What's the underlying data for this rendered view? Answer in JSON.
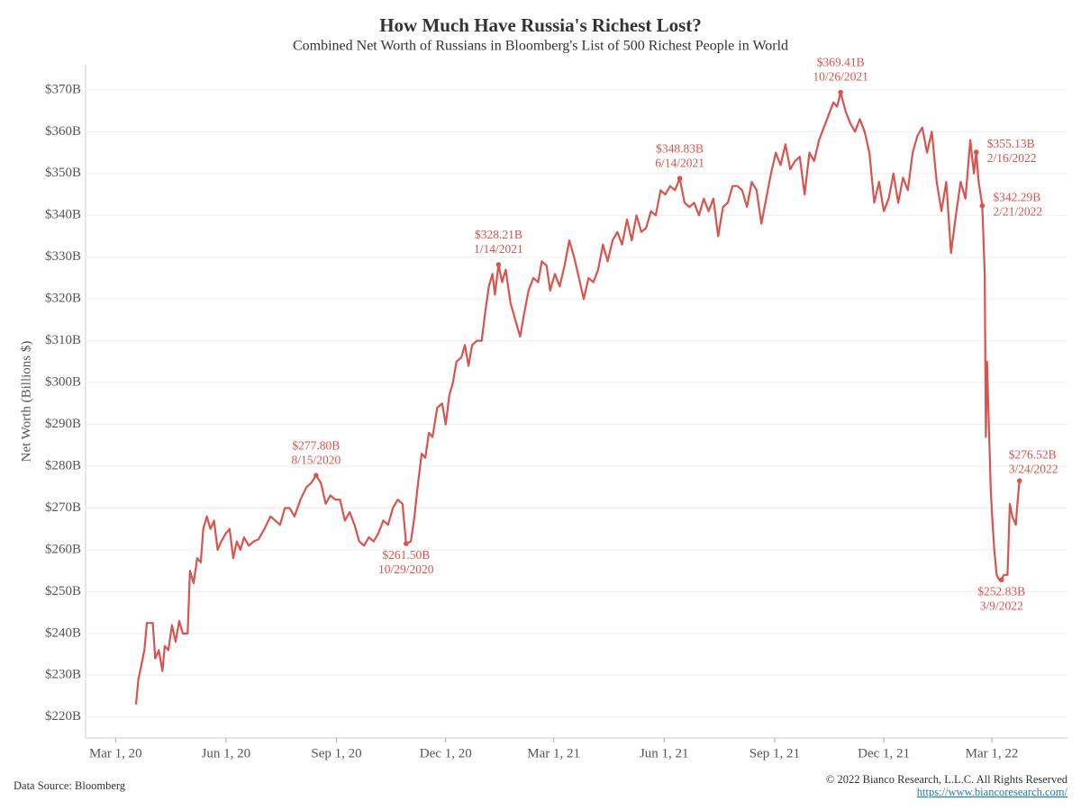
{
  "chart_data": {
    "type": "line",
    "title": "How Much Have Russia's Richest Lost?",
    "subtitle": "Combined Net Worth of Russians in Bloomberg's List of 500 Richest People in World",
    "y_label": "Net Worth (Billions $)",
    "source": "Data Source: Bloomberg",
    "copyright": "© 2022 Bianco Research, L.L.C. All Rights Reserved",
    "url": "https://www.biancoresearch.com/",
    "color": "#d9534f",
    "grid": true,
    "xlim": [
      "2020-02-05",
      "2022-05-03"
    ],
    "ylim": [
      215,
      376
    ],
    "xticks": [
      {
        "value": "2020-03-01",
        "label": "Mar 1, 20"
      },
      {
        "value": "2020-06-01",
        "label": "Jun 1, 20"
      },
      {
        "value": "2020-09-01",
        "label": "Sep 1, 20"
      },
      {
        "value": "2020-12-01",
        "label": "Dec 1, 20"
      },
      {
        "value": "2021-03-01",
        "label": "Mar 1, 21"
      },
      {
        "value": "2021-06-01",
        "label": "Jun 1, 21"
      },
      {
        "value": "2021-09-01",
        "label": "Sep 1, 21"
      },
      {
        "value": "2021-12-01",
        "label": "Dec 1, 21"
      },
      {
        "value": "2022-03-01",
        "label": "Mar 1, 22"
      }
    ],
    "yticks": [
      {
        "value": 220,
        "label": "$220B"
      },
      {
        "value": 230,
        "label": "$230B"
      },
      {
        "value": 240,
        "label": "$240B"
      },
      {
        "value": 250,
        "label": "$250B"
      },
      {
        "value": 260,
        "label": "$260B"
      },
      {
        "value": 270,
        "label": "$270B"
      },
      {
        "value": 280,
        "label": "$280B"
      },
      {
        "value": 290,
        "label": "$290B"
      },
      {
        "value": 300,
        "label": "$300B"
      },
      {
        "value": 310,
        "label": "$310B"
      },
      {
        "value": 320,
        "label": "$320B"
      },
      {
        "value": 330,
        "label": "$330B"
      },
      {
        "value": 340,
        "label": "$340B"
      },
      {
        "value": 350,
        "label": "$350B"
      },
      {
        "value": 360,
        "label": "$360B"
      },
      {
        "value": 370,
        "label": "$370B"
      }
    ],
    "x": [
      "2020-03-18",
      "2020-03-20",
      "2020-03-25",
      "2020-03-27",
      "2020-04-01",
      "2020-04-03",
      "2020-04-06",
      "2020-04-09",
      "2020-04-11",
      "2020-04-14",
      "2020-04-17",
      "2020-04-20",
      "2020-04-23",
      "2020-04-26",
      "2020-04-30",
      "2020-05-02",
      "2020-05-05",
      "2020-05-08",
      "2020-05-11",
      "2020-05-13",
      "2020-05-16",
      "2020-05-19",
      "2020-05-22",
      "2020-05-25",
      "2020-05-28",
      "2020-06-01",
      "2020-06-04",
      "2020-06-07",
      "2020-06-10",
      "2020-06-13",
      "2020-06-16",
      "2020-06-20",
      "2020-06-24",
      "2020-06-28",
      "2020-07-03",
      "2020-07-08",
      "2020-07-12",
      "2020-07-16",
      "2020-07-20",
      "2020-07-24",
      "2020-07-28",
      "2020-08-02",
      "2020-08-07",
      "2020-08-11",
      "2020-08-15",
      "2020-08-19",
      "2020-08-23",
      "2020-08-27",
      "2020-08-31",
      "2020-09-04",
      "2020-09-08",
      "2020-09-12",
      "2020-09-16",
      "2020-09-20",
      "2020-09-24",
      "2020-09-28",
      "2020-10-02",
      "2020-10-06",
      "2020-10-10",
      "2020-10-14",
      "2020-10-18",
      "2020-10-22",
      "2020-10-26",
      "2020-10-29",
      "2020-11-02",
      "2020-11-05",
      "2020-11-08",
      "2020-11-11",
      "2020-11-14",
      "2020-11-17",
      "2020-11-20",
      "2020-11-24",
      "2020-11-28",
      "2020-12-01",
      "2020-12-04",
      "2020-12-07",
      "2020-12-10",
      "2020-12-14",
      "2020-12-17",
      "2020-12-20",
      "2020-12-23",
      "2020-12-27",
      "2020-12-31",
      "2021-01-03",
      "2021-01-06",
      "2021-01-09",
      "2021-01-11",
      "2021-01-14",
      "2021-01-17",
      "2021-01-20",
      "2021-01-24",
      "2021-01-28",
      "2021-02-01",
      "2021-02-04",
      "2021-02-08",
      "2021-02-12",
      "2021-02-16",
      "2021-02-19",
      "2021-02-23",
      "2021-02-26",
      "2021-03-02",
      "2021-03-06",
      "2021-03-10",
      "2021-03-14",
      "2021-03-18",
      "2021-03-22",
      "2021-03-26",
      "2021-03-30",
      "2021-04-03",
      "2021-04-07",
      "2021-04-11",
      "2021-04-15",
      "2021-04-19",
      "2021-04-23",
      "2021-04-27",
      "2021-05-01",
      "2021-05-05",
      "2021-05-09",
      "2021-05-13",
      "2021-05-17",
      "2021-05-21",
      "2021-05-25",
      "2021-05-29",
      "2021-06-02",
      "2021-06-06",
      "2021-06-10",
      "2021-06-14",
      "2021-06-18",
      "2021-06-22",
      "2021-06-26",
      "2021-06-30",
      "2021-07-04",
      "2021-07-08",
      "2021-07-12",
      "2021-07-16",
      "2021-07-20",
      "2021-07-24",
      "2021-07-28",
      "2021-08-01",
      "2021-08-05",
      "2021-08-09",
      "2021-08-13",
      "2021-08-17",
      "2021-08-21",
      "2021-08-25",
      "2021-08-29",
      "2021-09-02",
      "2021-09-06",
      "2021-09-10",
      "2021-09-14",
      "2021-09-18",
      "2021-09-22",
      "2021-09-26",
      "2021-09-30",
      "2021-10-04",
      "2021-10-08",
      "2021-10-12",
      "2021-10-16",
      "2021-10-20",
      "2021-10-23",
      "2021-10-26",
      "2021-10-30",
      "2021-11-03",
      "2021-11-07",
      "2021-11-11",
      "2021-11-15",
      "2021-11-19",
      "2021-11-23",
      "2021-11-27",
      "2021-12-01",
      "2021-12-05",
      "2021-12-09",
      "2021-12-13",
      "2021-12-17",
      "2021-12-21",
      "2021-12-25",
      "2021-12-29",
      "2022-01-02",
      "2022-01-06",
      "2022-01-10",
      "2022-01-14",
      "2022-01-18",
      "2022-01-22",
      "2022-01-26",
      "2022-01-30",
      "2022-02-03",
      "2022-02-07",
      "2022-02-11",
      "2022-02-14",
      "2022-02-16",
      "2022-02-18",
      "2022-02-21",
      "2022-02-23",
      "2022-02-24",
      "2022-02-25",
      "2022-02-28",
      "2022-03-01",
      "2022-03-03",
      "2022-03-05",
      "2022-03-07",
      "2022-03-09",
      "2022-03-11",
      "2022-03-14",
      "2022-03-16",
      "2022-03-18",
      "2022-03-21",
      "2022-03-22",
      "2022-03-24"
    ],
    "values": [
      223,
      229,
      236,
      242.5,
      242.5,
      234,
      236,
      231,
      237,
      236,
      242,
      238,
      243,
      240,
      240,
      255,
      252,
      258,
      257,
      265,
      268,
      265,
      267,
      260,
      262,
      264,
      265,
      258,
      262,
      260,
      263,
      261,
      262,
      262.5,
      265,
      268,
      267,
      266,
      270,
      270,
      268,
      272,
      275,
      276,
      277.8,
      276,
      271,
      273,
      272,
      272,
      267,
      269,
      266,
      262,
      261,
      263,
      262,
      264,
      267,
      266,
      270,
      272,
      271,
      261.5,
      262,
      268,
      276,
      283,
      282,
      288,
      287,
      294,
      295,
      290,
      297,
      300,
      305,
      306,
      309,
      304,
      309,
      310,
      310,
      317,
      323,
      326,
      321,
      328.21,
      324,
      327,
      319,
      315,
      311,
      316,
      322,
      325,
      324,
      329,
      328,
      322,
      326,
      323,
      328,
      334,
      330,
      325,
      320,
      325,
      324,
      327,
      333,
      329,
      334,
      336,
      333,
      339,
      334,
      340,
      336,
      337,
      341,
      340,
      346,
      345,
      347,
      346,
      348.83,
      343,
      342,
      343,
      340,
      344,
      341,
      344,
      335,
      342,
      343,
      347,
      347,
      346,
      342,
      348,
      346,
      338,
      344,
      350,
      355,
      352,
      357,
      351,
      353,
      354,
      345,
      355,
      353,
      358,
      361,
      364,
      367,
      366,
      369.41,
      365,
      362,
      360,
      363,
      360,
      355,
      343,
      348,
      341,
      344,
      350,
      343,
      349,
      346,
      355,
      359,
      361,
      355,
      360,
      348,
      341,
      348,
      331,
      340,
      348,
      344,
      358,
      350,
      355.13,
      348,
      342.29,
      326,
      287,
      305,
      275,
      269,
      260,
      254,
      252.9,
      252.83,
      254,
      254,
      271,
      268,
      266,
      270,
      276.52
    ],
    "annotations": [
      {
        "x": "2020-08-15",
        "value": 277.8,
        "label": "$277.80B",
        "date": "8/15/2020"
      },
      {
        "x": "2020-10-29",
        "value": 261.5,
        "label": "$261.50B",
        "date": "10/29/2020"
      },
      {
        "x": "2021-01-14",
        "value": 328.21,
        "label": "$328.21B",
        "date": "1/14/2021"
      },
      {
        "x": "2021-06-14",
        "value": 348.83,
        "label": "$348.83B",
        "date": "6/14/2021"
      },
      {
        "x": "2021-10-26",
        "value": 369.41,
        "label": "$369.41B",
        "date": "10/26/2021"
      },
      {
        "x": "2022-02-16",
        "value": 355.13,
        "label": "$355.13B",
        "date": "2/16/2022"
      },
      {
        "x": "2022-02-21",
        "value": 342.29,
        "label": "$342.29B",
        "date": "2/21/2022"
      },
      {
        "x": "2022-03-09",
        "value": 252.83,
        "label": "$252.83B",
        "date": "3/9/2022"
      },
      {
        "x": "2022-03-24",
        "value": 276.52,
        "label": "$276.52B",
        "date": "3/24/2022"
      }
    ]
  }
}
